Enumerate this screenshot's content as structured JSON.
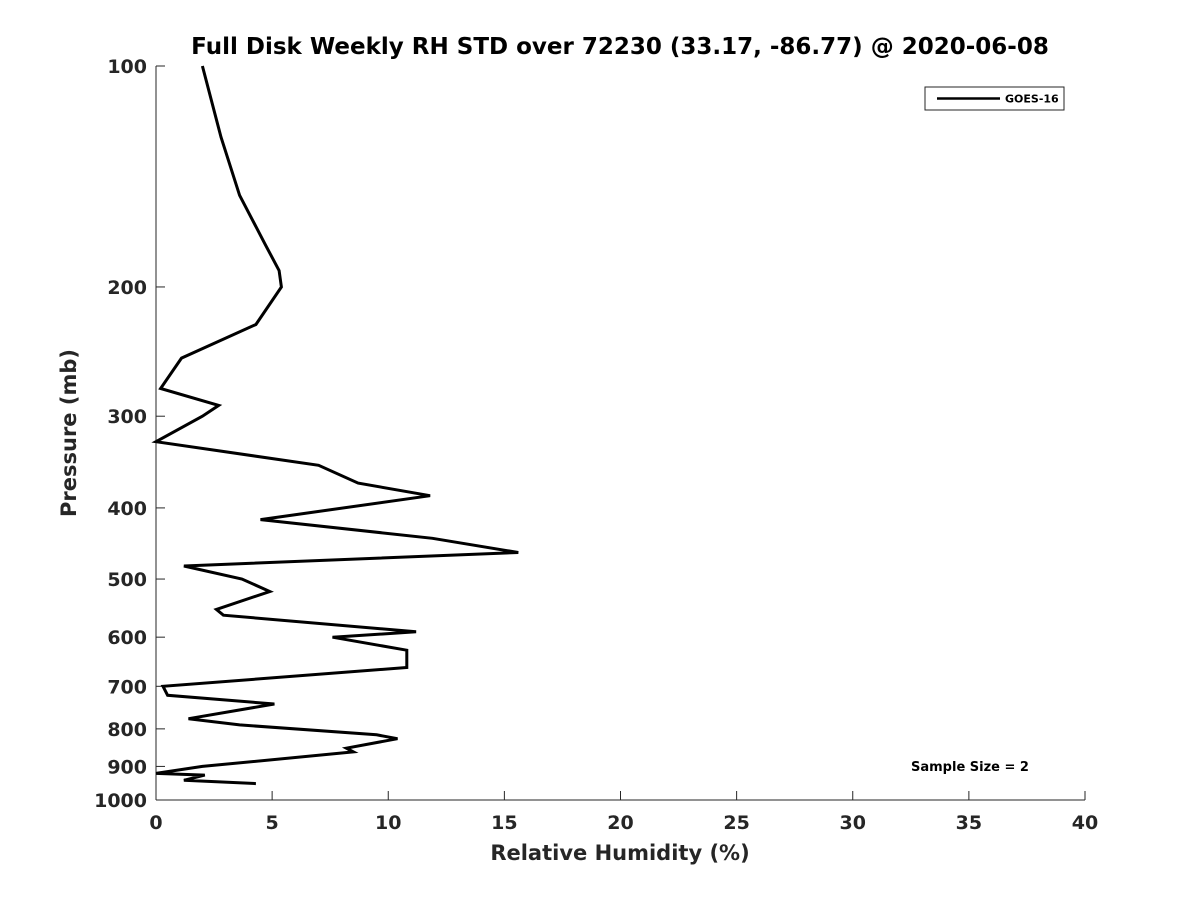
{
  "chart_data": {
    "type": "line",
    "title": "Full Disk Weekly RH STD over 72230 (33.17, -86.77) @ 2020-06-08",
    "xlabel": "Relative Humidity (%)",
    "ylabel": "Pressure (mb)",
    "xlim": [
      0,
      40
    ],
    "ylim": [
      1000,
      100
    ],
    "y_scale": "log",
    "y_direction": "reversed",
    "xticks": [
      0,
      5,
      10,
      15,
      20,
      25,
      30,
      35,
      40
    ],
    "xtick_labels": [
      "0",
      "5",
      "10",
      "15",
      "20",
      "25",
      "30",
      "35",
      "40"
    ],
    "yticks": [
      100,
      200,
      300,
      400,
      500,
      600,
      700,
      800,
      900,
      1000
    ],
    "ytick_labels": [
      "100",
      "200",
      "300",
      "400",
      "500",
      "600",
      "700",
      "800",
      "900",
      "1000"
    ],
    "grid": false,
    "legend_position": "top-right",
    "annotation": "Sample Size = 2",
    "series": [
      {
        "name": "GOES-16",
        "color": "#000000",
        "points": [
          [
            2.0,
            100
          ],
          [
            2.8,
            125
          ],
          [
            3.6,
            150
          ],
          [
            4.7,
            175
          ],
          [
            5.3,
            190
          ],
          [
            5.4,
            200
          ],
          [
            4.3,
            225
          ],
          [
            1.1,
            250
          ],
          [
            0.2,
            275
          ],
          [
            2.7,
            290
          ],
          [
            2.0,
            300
          ],
          [
            0.0,
            325
          ],
          [
            7.0,
            350
          ],
          [
            8.7,
            370
          ],
          [
            11.8,
            385
          ],
          [
            4.5,
            415
          ],
          [
            11.9,
            440
          ],
          [
            15.6,
            460
          ],
          [
            1.2,
            480
          ],
          [
            3.7,
            500
          ],
          [
            4.9,
            520
          ],
          [
            2.6,
            550
          ],
          [
            2.9,
            560
          ],
          [
            11.2,
            590
          ],
          [
            7.6,
            600
          ],
          [
            10.8,
            625
          ],
          [
            10.8,
            660
          ],
          [
            0.3,
            700
          ],
          [
            0.5,
            720
          ],
          [
            5.1,
            740
          ],
          [
            1.4,
            775
          ],
          [
            3.6,
            790
          ],
          [
            9.5,
            815
          ],
          [
            10.4,
            825
          ],
          [
            8.2,
            850
          ],
          [
            8.5,
            860
          ],
          [
            2.0,
            900
          ],
          [
            0.0,
            920
          ],
          [
            2.1,
            925
          ],
          [
            1.2,
            940
          ],
          [
            4.3,
            950
          ]
        ]
      }
    ]
  }
}
